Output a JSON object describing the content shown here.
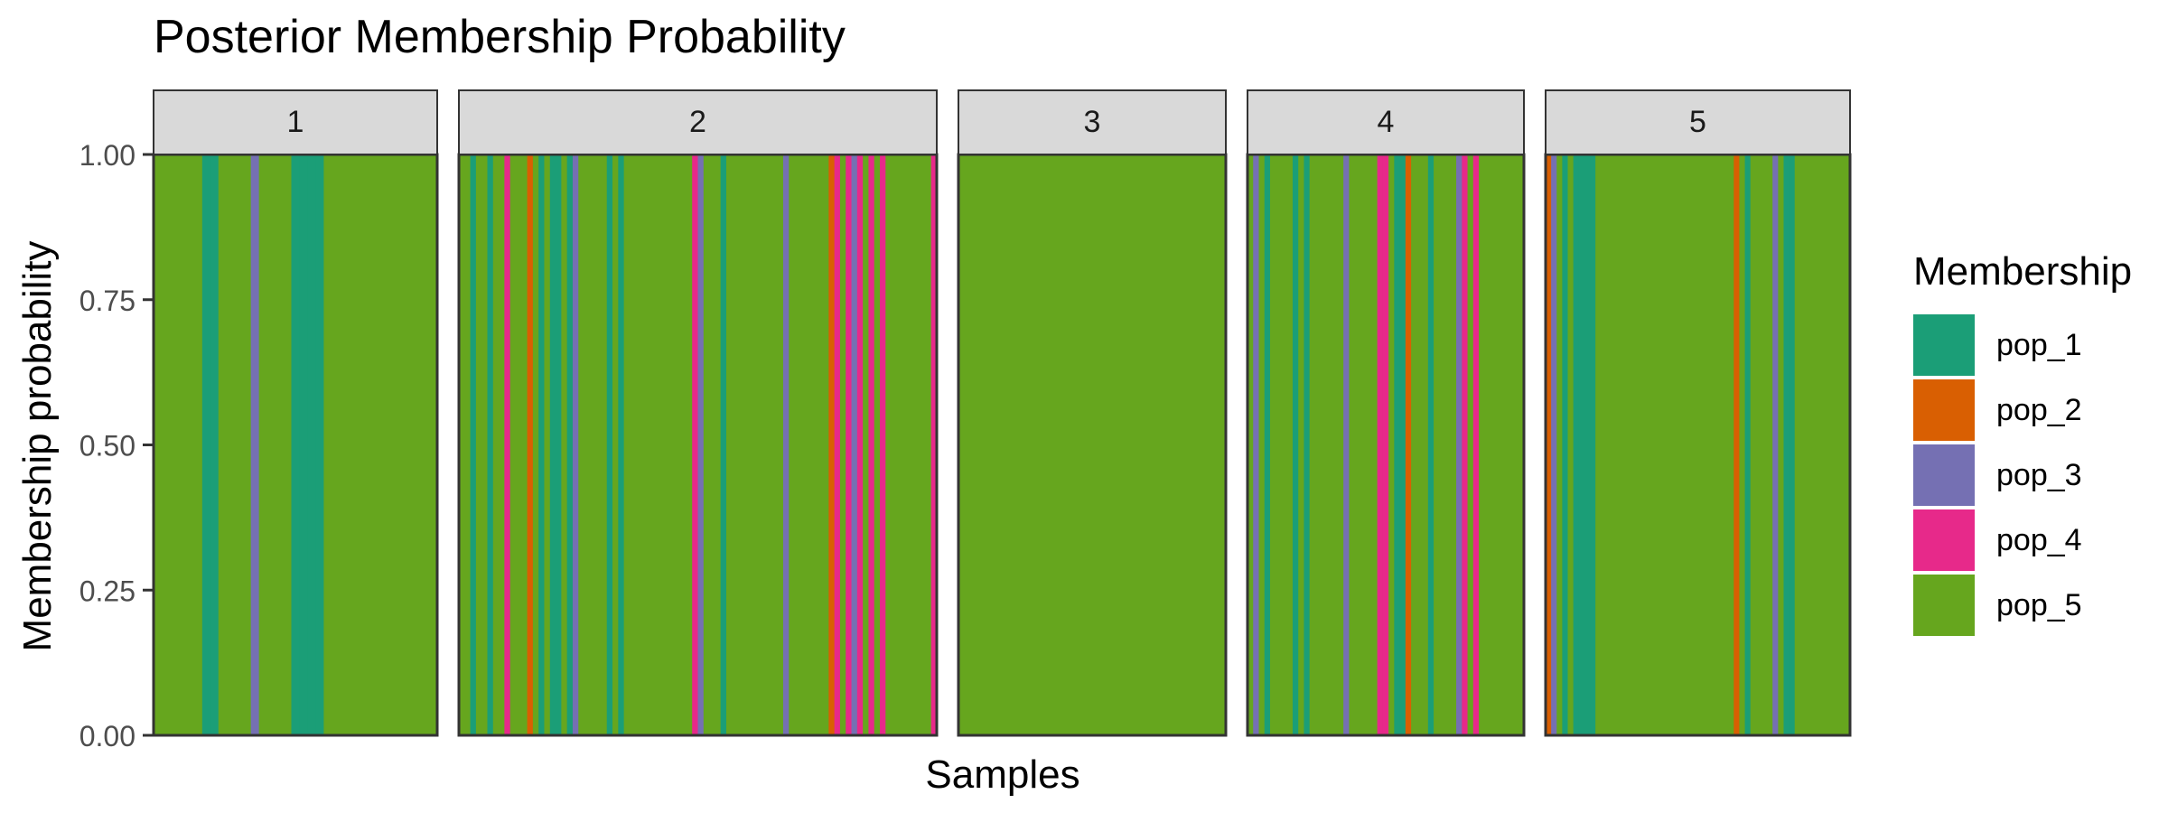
{
  "chart_data": {
    "type": "bar",
    "stacked": true,
    "title": "Posterior Membership Probability",
    "xlabel": "Samples",
    "ylabel": "Membership probability",
    "ylim": [
      0,
      1
    ],
    "yticks": [
      "0.00",
      "0.25",
      "0.50",
      "0.75",
      "1.00"
    ],
    "grid": false,
    "legend": {
      "title": "Membership",
      "position": "right"
    },
    "colors": {
      "pop_1": "#1b9e77",
      "pop_2": "#d95f02",
      "pop_3": "#7570b3",
      "pop_4": "#e7298a",
      "pop_5": "#66a61e"
    },
    "series_names": [
      "pop_1",
      "pop_2",
      "pop_3",
      "pop_4",
      "pop_5"
    ],
    "facets": [
      {
        "label": "1",
        "samples": [
          "pop_5",
          "pop_5",
          "pop_5",
          "pop_5",
          "pop_5",
          "pop_5",
          "pop_1",
          "pop_1",
          "pop_5",
          "pop_5",
          "pop_5",
          "pop_5",
          "pop_3",
          "pop_5",
          "pop_5",
          "pop_5",
          "pop_5",
          "pop_1",
          "pop_1",
          "pop_1",
          "pop_1",
          "pop_5",
          "pop_5",
          "pop_5",
          "pop_5",
          "pop_5",
          "pop_5",
          "pop_5",
          "pop_5",
          "pop_5",
          "pop_5",
          "pop_5",
          "pop_5",
          "pop_5",
          "pop_5"
        ]
      },
      {
        "label": "2",
        "samples": [
          "pop_5",
          "pop_5",
          "pop_1",
          "pop_5",
          "pop_5",
          "pop_1",
          "pop_5",
          "pop_5",
          "pop_4",
          "pop_5",
          "pop_5",
          "pop_5",
          "pop_2",
          "pop_5",
          "pop_1",
          "pop_5",
          "pop_1",
          "pop_1",
          "pop_5",
          "pop_1",
          "pop_3",
          "pop_5",
          "pop_5",
          "pop_5",
          "pop_5",
          "pop_5",
          "pop_1",
          "pop_5",
          "pop_1",
          "pop_5",
          "pop_5",
          "pop_5",
          "pop_5",
          "pop_5",
          "pop_5",
          "pop_5",
          "pop_5",
          "pop_5",
          "pop_5",
          "pop_5",
          "pop_5",
          "pop_4",
          "pop_3",
          "pop_5",
          "pop_5",
          "pop_5",
          "pop_1",
          "pop_5",
          "pop_5",
          "pop_5",
          "pop_5",
          "pop_5",
          "pop_5",
          "pop_5",
          "pop_5",
          "pop_5",
          "pop_5",
          "pop_3",
          "pop_5",
          "pop_5",
          "pop_5",
          "pop_5",
          "pop_5",
          "pop_5",
          "pop_5",
          "pop_2",
          "pop_4",
          "pop_5",
          "pop_4",
          "pop_3",
          "pop_4",
          "pop_5",
          "pop_4",
          "pop_5",
          "pop_4",
          "pop_5",
          "pop_5",
          "pop_5",
          "pop_5",
          "pop_5",
          "pop_5",
          "pop_5",
          "pop_5",
          "pop_4"
        ]
      },
      {
        "label": "3",
        "samples": [
          "pop_5",
          "pop_5",
          "pop_5",
          "pop_5",
          "pop_5",
          "pop_5",
          "pop_5",
          "pop_5",
          "pop_5",
          "pop_5",
          "pop_5",
          "pop_5",
          "pop_5",
          "pop_5",
          "pop_5",
          "pop_5",
          "pop_5",
          "pop_5",
          "pop_5",
          "pop_5",
          "pop_5",
          "pop_5",
          "pop_5",
          "pop_5",
          "pop_5",
          "pop_5",
          "pop_5",
          "pop_5",
          "pop_5",
          "pop_5",
          "pop_5",
          "pop_5",
          "pop_5",
          "pop_5",
          "pop_5",
          "pop_5",
          "pop_5",
          "pop_5",
          "pop_5",
          "pop_5",
          "pop_5",
          "pop_5",
          "pop_5",
          "pop_5",
          "pop_5",
          "pop_5",
          "pop_5",
          "pop_5"
        ]
      },
      {
        "label": "4",
        "samples": [
          "pop_5",
          "pop_3",
          "pop_5",
          "pop_1",
          "pop_5",
          "pop_5",
          "pop_5",
          "pop_5",
          "pop_1",
          "pop_5",
          "pop_1",
          "pop_5",
          "pop_5",
          "pop_5",
          "pop_5",
          "pop_5",
          "pop_5",
          "pop_3",
          "pop_5",
          "pop_5",
          "pop_5",
          "pop_5",
          "pop_5",
          "pop_4",
          "pop_4",
          "pop_5",
          "pop_1",
          "pop_1",
          "pop_2",
          "pop_5",
          "pop_5",
          "pop_5",
          "pop_1",
          "pop_5",
          "pop_5",
          "pop_5",
          "pop_5",
          "pop_3",
          "pop_4",
          "pop_5",
          "pop_4",
          "pop_5",
          "pop_5",
          "pop_5",
          "pop_5",
          "pop_5",
          "pop_5",
          "pop_5",
          "pop_5"
        ]
      },
      {
        "label": "5",
        "samples": [
          "pop_2",
          "pop_3",
          "pop_5",
          "pop_1",
          "pop_5",
          "pop_1",
          "pop_1",
          "pop_1",
          "pop_1",
          "pop_5",
          "pop_5",
          "pop_5",
          "pop_5",
          "pop_5",
          "pop_5",
          "pop_5",
          "pop_5",
          "pop_5",
          "pop_5",
          "pop_5",
          "pop_5",
          "pop_5",
          "pop_5",
          "pop_5",
          "pop_5",
          "pop_5",
          "pop_5",
          "pop_5",
          "pop_5",
          "pop_5",
          "pop_5",
          "pop_5",
          "pop_5",
          "pop_5",
          "pop_2",
          "pop_5",
          "pop_1",
          "pop_5",
          "pop_5",
          "pop_5",
          "pop_5",
          "pop_3",
          "pop_5",
          "pop_1",
          "pop_1",
          "pop_5",
          "pop_5",
          "pop_5",
          "pop_5",
          "pop_5",
          "pop_5",
          "pop_5",
          "pop_5",
          "pop_5",
          "pop_5"
        ]
      }
    ]
  }
}
